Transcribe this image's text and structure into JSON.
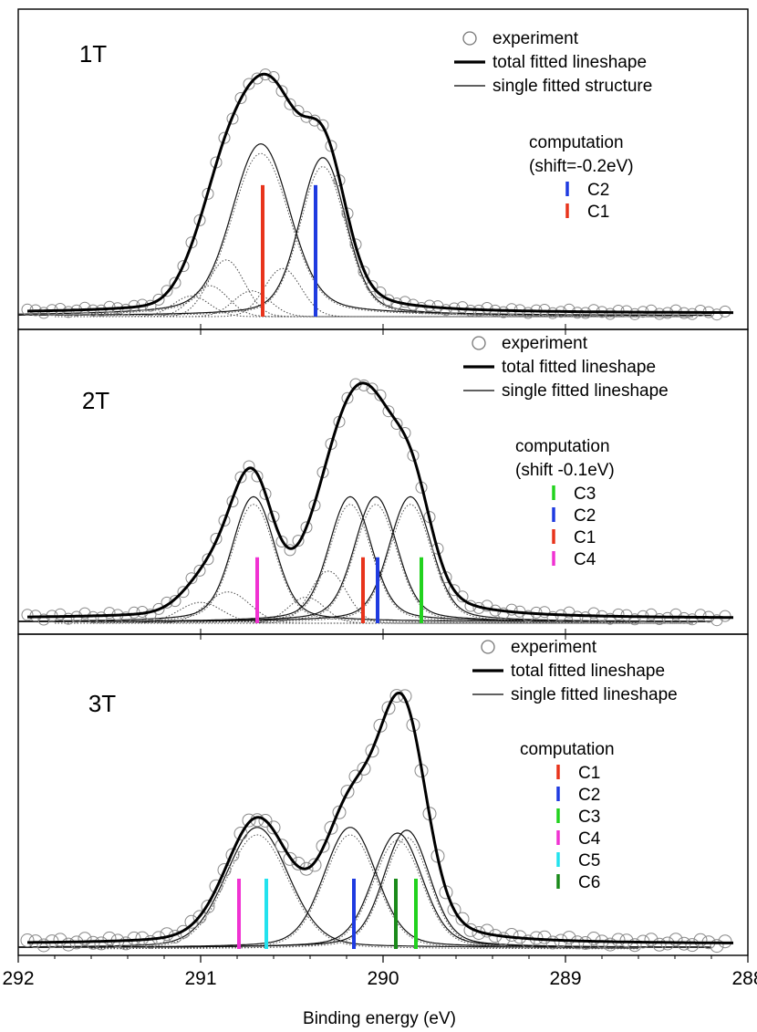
{
  "xlabel": "Binding energy (eV)",
  "xticks": [
    "292",
    "291",
    "290",
    "289",
    "288"
  ],
  "xlim": [
    292,
    288
  ],
  "chart_data": [
    {
      "type": "line",
      "panel_title": "1T",
      "legend": [
        "experiment",
        "total fitted lineshape",
        "single fitted structure"
      ],
      "computation_title": "computation",
      "computation_note": "(shift=-0.2eV)",
      "computation_legend": [
        {
          "label": "C2",
          "color": "#1f3be0"
        },
        {
          "label": "C1",
          "color": "#e8341c"
        }
      ],
      "markers": [
        {
          "label": "C1",
          "x": 290.66,
          "height": 0.55,
          "color": "#e8341c"
        },
        {
          "label": "C2",
          "x": 290.37,
          "height": 0.55,
          "color": "#1f3be0"
        }
      ],
      "main_peaks": [
        {
          "center": 290.67,
          "amp": 1.0,
          "width": 0.15,
          "tail": 0.3
        },
        {
          "center": 290.33,
          "amp": 0.92,
          "width": 0.12,
          "tail": 0.22
        }
      ],
      "small_peaks": [
        {
          "center": 290.86,
          "amp": 0.33,
          "width": 0.1
        },
        {
          "center": 290.95,
          "amp": 0.18,
          "width": 0.1
        },
        {
          "center": 291.05,
          "amp": 0.12,
          "width": 0.1
        },
        {
          "center": 290.55,
          "amp": 0.28,
          "width": 0.1
        },
        {
          "center": 290.72,
          "amp": 0.15,
          "width": 0.1
        }
      ],
      "total_peak": 1.42,
      "baseline": 0.02
    },
    {
      "type": "line",
      "panel_title": "2T",
      "legend": [
        "experiment",
        "total fitted lineshape",
        "single fitted lineshape"
      ],
      "computation_title": "computation",
      "computation_note": "(shift -0.1eV)",
      "computation_legend": [
        {
          "label": "C3",
          "color": "#22d21e"
        },
        {
          "label": "C2",
          "color": "#1f3be0"
        },
        {
          "label": "C1",
          "color": "#e8341c"
        },
        {
          "label": "C4",
          "color": "#f032d2"
        }
      ],
      "markers": [
        {
          "label": "C4",
          "x": 290.69,
          "height": 0.28,
          "color": "#f032d2"
        },
        {
          "label": "C1",
          "x": 290.11,
          "height": 0.28,
          "color": "#e8341c"
        },
        {
          "label": "C2",
          "x": 290.03,
          "height": 0.28,
          "color": "#1f3be0"
        },
        {
          "label": "C3",
          "x": 289.79,
          "height": 0.28,
          "color": "#22d21e"
        }
      ],
      "main_peaks": [
        {
          "center": 290.71,
          "amp": 0.48,
          "width": 0.11,
          "tail": 0.22
        },
        {
          "center": 290.18,
          "amp": 0.48,
          "width": 0.11,
          "tail": 0.22
        },
        {
          "center": 290.04,
          "amp": 0.48,
          "width": 0.11,
          "tail": 0.22
        },
        {
          "center": 289.85,
          "amp": 0.48,
          "width": 0.11,
          "tail": 0.22
        }
      ],
      "small_peaks": [
        {
          "center": 290.85,
          "amp": 0.12,
          "width": 0.12
        },
        {
          "center": 291.0,
          "amp": 0.08,
          "width": 0.12
        },
        {
          "center": 290.3,
          "amp": 0.2,
          "width": 0.1
        },
        {
          "center": 290.42,
          "amp": 0.1,
          "width": 0.1
        }
      ],
      "total_peak": 1.0,
      "baseline": 0.02
    },
    {
      "type": "line",
      "panel_title": "3T",
      "legend": [
        "experiment",
        "total fitted lineshape",
        "single fitted lineshape"
      ],
      "computation_title": "computation",
      "computation_note": "",
      "computation_legend": [
        {
          "label": "C1",
          "color": "#e8341c"
        },
        {
          "label": "C2",
          "color": "#1f3be0"
        },
        {
          "label": "C3",
          "color": "#22d21e"
        },
        {
          "label": "C4",
          "color": "#f032d2"
        },
        {
          "label": "C5",
          "color": "#22e2ee"
        },
        {
          "label": "C6",
          "color": "#1a8a1a"
        }
      ],
      "markers": [
        {
          "label": "C4",
          "x": 290.79,
          "height": 0.28,
          "color": "#f032d2"
        },
        {
          "label": "C5",
          "x": 290.64,
          "height": 0.28,
          "color": "#22e2ee"
        },
        {
          "label": "C2",
          "x": 290.16,
          "height": 0.28,
          "color": "#1f3be0"
        },
        {
          "label": "C6",
          "x": 289.93,
          "height": 0.28,
          "color": "#1a8a1a"
        },
        {
          "label": "C3",
          "x": 289.82,
          "height": 0.28,
          "color": "#22d21e"
        }
      ],
      "main_peaks": [
        {
          "center": 290.69,
          "amp": 0.42,
          "width": 0.17,
          "tail": 0.22
        },
        {
          "center": 290.18,
          "amp": 0.42,
          "width": 0.14,
          "tail": 0.22
        },
        {
          "center": 289.92,
          "amp": 0.4,
          "width": 0.13,
          "tail": 0.22
        },
        {
          "center": 289.87,
          "amp": 0.41,
          "width": 0.12,
          "tail": 0.22
        }
      ],
      "small_peaks": [],
      "total_peak": 1.0,
      "baseline": 0.02
    }
  ]
}
